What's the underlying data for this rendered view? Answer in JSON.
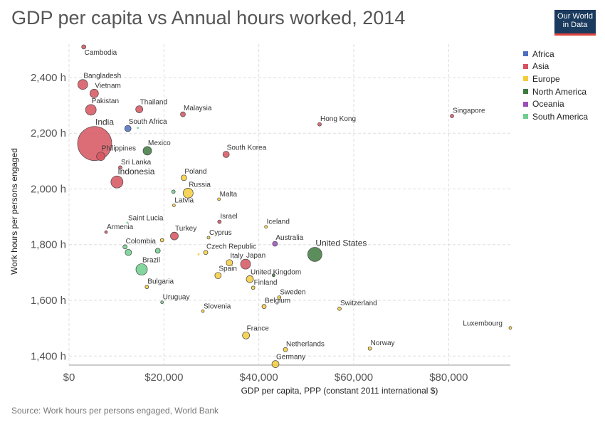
{
  "title": "GDP per capita vs Annual hours worked, 2014",
  "logo": {
    "line1": "Our World",
    "line2": "in Data"
  },
  "source": "Source: Work hours per persons engaged, World Bank",
  "colors": {
    "Africa": "#4e6fbf",
    "Asia": "#d6545f",
    "Europe": "#f5cc3c",
    "North America": "#3f7a40",
    "Oceania": "#9b4fb8",
    "South America": "#6fcf8e"
  },
  "legend": [
    "Africa",
    "Asia",
    "Europe",
    "North America",
    "Oceania",
    "South America"
  ],
  "chart_data": {
    "type": "scatter",
    "title": "GDP per capita vs Annual hours worked, 2014",
    "xlabel": "GDP per capita, PPP (constant 2011 international $)",
    "ylabel": "Work hours per persons engaged",
    "xlim": [
      0,
      93000
    ],
    "ylim": [
      1370,
      2520
    ],
    "xticks": [
      {
        "v": 0,
        "label": "$0"
      },
      {
        "v": 20000,
        "label": "$20,000"
      },
      {
        "v": 40000,
        "label": "$40,000"
      },
      {
        "v": 60000,
        "label": "$60,000"
      },
      {
        "v": 80000,
        "label": "$80,000"
      }
    ],
    "yticks": [
      {
        "v": 1400,
        "label": "1,400 h"
      },
      {
        "v": 1600,
        "label": "1,600 h"
      },
      {
        "v": 1800,
        "label": "1,800 h"
      },
      {
        "v": 2000,
        "label": "2,000 h"
      },
      {
        "v": 2200,
        "label": "2,200 h"
      },
      {
        "v": 2400,
        "label": "2,400 h"
      }
    ],
    "grid": true,
    "legend_position": "right",
    "points": [
      {
        "label": "Cambodia",
        "x": 3100,
        "y": 2510,
        "region": "Asia",
        "size": 3
      },
      {
        "label": "Bangladesh",
        "x": 2900,
        "y": 2375,
        "region": "Asia",
        "size": 7
      },
      {
        "label": "Vietnam",
        "x": 5300,
        "y": 2343,
        "region": "Asia",
        "size": 6
      },
      {
        "label": "Pakistan",
        "x": 4600,
        "y": 2284,
        "region": "Asia",
        "size": 7.5
      },
      {
        "label": "Thailand",
        "x": 14800,
        "y": 2286,
        "region": "Asia",
        "size": 5
      },
      {
        "label": "Malaysia",
        "x": 24000,
        "y": 2268,
        "region": "Asia",
        "size": 3.5
      },
      {
        "label": "Hong Kong",
        "x": 52800,
        "y": 2232,
        "region": "Asia",
        "size": 2.5
      },
      {
        "label": "Singapore",
        "x": 80700,
        "y": 2262,
        "region": "Asia",
        "size": 2.5
      },
      {
        "label": "South Africa",
        "x": 12400,
        "y": 2217,
        "region": "Africa",
        "size": 4.5
      },
      {
        "label": "",
        "x": 14500,
        "y": 2219,
        "region": "South America",
        "size": 1.5
      },
      {
        "label": "India",
        "x": 5400,
        "y": 2163,
        "region": "Asia",
        "size": 24
      },
      {
        "label": "Mexico",
        "x": 16500,
        "y": 2137,
        "region": "North America",
        "size": 6
      },
      {
        "label": "Philippines",
        "x": 6700,
        "y": 2117,
        "region": "Asia",
        "size": 6
      },
      {
        "label": "South Korea",
        "x": 33100,
        "y": 2124,
        "region": "Asia",
        "size": 4.5
      },
      {
        "label": "Sri Lanka",
        "x": 10800,
        "y": 2077,
        "region": "Asia",
        "size": 2.5
      },
      {
        "label": "Indonesia",
        "x": 10100,
        "y": 2025,
        "region": "Asia",
        "size": 8.5
      },
      {
        "label": "Poland",
        "x": 24200,
        "y": 2040,
        "region": "Europe",
        "size": 4
      },
      {
        "label": "Russia",
        "x": 25100,
        "y": 1985,
        "region": "Europe",
        "size": 7
      },
      {
        "label": "",
        "x": 22000,
        "y": 1990,
        "region": "South America",
        "size": 2.5
      },
      {
        "label": "Malta",
        "x": 31600,
        "y": 1963,
        "region": "Europe",
        "size": 2
      },
      {
        "label": "Latvia",
        "x": 22100,
        "y": 1941,
        "region": "Europe",
        "size": 2
      },
      {
        "label": "Saint Lucia",
        "x": 12300,
        "y": 1879,
        "region": "South America",
        "size": 1.5
      },
      {
        "label": "Israel",
        "x": 31700,
        "y": 1882,
        "region": "Asia",
        "size": 2.5
      },
      {
        "label": "Iceland",
        "x": 41500,
        "y": 1864,
        "region": "Europe",
        "size": 2
      },
      {
        "label": "Armenia",
        "x": 7800,
        "y": 1845,
        "region": "Asia",
        "size": 2
      },
      {
        "label": "Turkey",
        "x": 22200,
        "y": 1831,
        "region": "Asia",
        "size": 5.5
      },
      {
        "label": "Cyprus",
        "x": 29400,
        "y": 1825,
        "region": "Europe",
        "size": 2
      },
      {
        "label": "",
        "x": 19600,
        "y": 1816,
        "region": "Europe",
        "size": 2.5
      },
      {
        "label": "Australia",
        "x": 43400,
        "y": 1803,
        "region": "Oceania",
        "size": 3.5
      },
      {
        "label": "United States",
        "x": 51800,
        "y": 1765,
        "region": "North America",
        "size": 10
      },
      {
        "label": "Colombia",
        "x": 11800,
        "y": 1792,
        "region": "South America",
        "size": 3
      },
      {
        "label": "",
        "x": 12500,
        "y": 1772,
        "region": "South America",
        "size": 4.5
      },
      {
        "label": "",
        "x": 18700,
        "y": 1778,
        "region": "South America",
        "size": 3.5
      },
      {
        "label": "Czech Republic",
        "x": 28800,
        "y": 1772,
        "region": "Europe",
        "size": 3
      },
      {
        "label": "",
        "x": 27300,
        "y": 1765,
        "region": "Europe",
        "size": 1.5
      },
      {
        "label": "Italy",
        "x": 33800,
        "y": 1735,
        "region": "Europe",
        "size": 4.5
      },
      {
        "label": "Japan",
        "x": 37200,
        "y": 1730,
        "region": "Asia",
        "size": 7
      },
      {
        "label": "Brazil",
        "x": 15300,
        "y": 1711,
        "region": "South America",
        "size": 8
      },
      {
        "label": "Spain",
        "x": 31400,
        "y": 1689,
        "region": "Europe",
        "size": 4.5
      },
      {
        "label": "United Kingdom",
        "x": 38100,
        "y": 1676,
        "region": "Europe",
        "size": 5
      },
      {
        "label": "",
        "x": 43100,
        "y": 1690,
        "region": "North America",
        "size": 2
      },
      {
        "label": "Finland",
        "x": 38800,
        "y": 1645,
        "region": "Europe",
        "size": 2.5
      },
      {
        "label": "Bulgaria",
        "x": 16400,
        "y": 1648,
        "region": "Europe",
        "size": 2.5
      },
      {
        "label": "Sweden",
        "x": 44300,
        "y": 1610,
        "region": "Europe",
        "size": 2.5
      },
      {
        "label": "Uruguay",
        "x": 19600,
        "y": 1593,
        "region": "South America",
        "size": 2
      },
      {
        "label": "Belgium",
        "x": 41100,
        "y": 1578,
        "region": "Europe",
        "size": 3
      },
      {
        "label": "Switzerland",
        "x": 57000,
        "y": 1570,
        "region": "Europe",
        "size": 2.5
      },
      {
        "label": "Slovenia",
        "x": 28200,
        "y": 1561,
        "region": "Europe",
        "size": 2
      },
      {
        "label": "Luxembourg",
        "x": 93000,
        "y": 1501,
        "region": "Europe",
        "size": 2
      },
      {
        "label": "France",
        "x": 37300,
        "y": 1474,
        "region": "Europe",
        "size": 5
      },
      {
        "label": "Netherlands",
        "x": 45600,
        "y": 1423,
        "region": "Europe",
        "size": 3
      },
      {
        "label": "Norway",
        "x": 63400,
        "y": 1427,
        "region": "Europe",
        "size": 2.5
      },
      {
        "label": "Germany",
        "x": 43500,
        "y": 1371,
        "region": "Europe",
        "size": 5
      }
    ]
  }
}
